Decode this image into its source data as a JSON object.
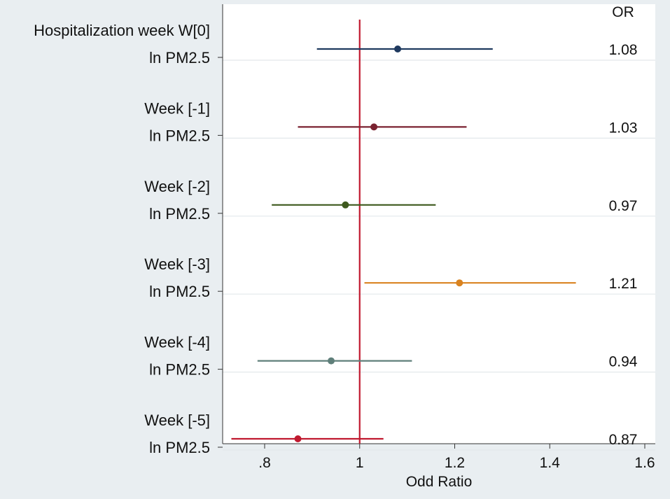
{
  "chart_data": {
    "type": "forest",
    "xlabel": "Odd Ratio",
    "xlim": [
      0.7,
      1.6
    ],
    "xticks": [
      {
        "value": 0.8,
        "label": ".8"
      },
      {
        "value": 1.0,
        "label": "1"
      },
      {
        "value": 1.2,
        "label": "1.2"
      },
      {
        "value": 1.4,
        "label": "1.4"
      },
      {
        "value": 1.6,
        "label": "1.6"
      }
    ],
    "reference_line": 1.0,
    "reference_color": "#c0192f",
    "or_header": "OR",
    "rows": [
      {
        "group": "Hospitalization week W[0]",
        "label": "ln PM2.5",
        "or": 1.08,
        "lo": 0.91,
        "hi": 1.28,
        "or_label": "1.08",
        "color": "#1f3a5f"
      },
      {
        "group": "Week [-1]",
        "label": "ln PM2.5",
        "or": 1.03,
        "lo": 0.87,
        "hi": 1.225,
        "or_label": "1.03",
        "color": "#7a2230"
      },
      {
        "group": "Week [-2]",
        "label": "ln PM2.5",
        "or": 0.97,
        "lo": 0.815,
        "hi": 1.16,
        "or_label": "0.97",
        "color": "#3e5a1e"
      },
      {
        "group": "Week [-3]",
        "label": "ln PM2.5",
        "or": 1.21,
        "lo": 1.01,
        "hi": 1.455,
        "or_label": "1.21",
        "color": "#d98320"
      },
      {
        "group": "Week [-4]",
        "label": "ln PM2.5",
        "or": 0.94,
        "lo": 0.785,
        "hi": 1.11,
        "or_label": "0.94",
        "color": "#5f7f7a"
      },
      {
        "group": "Week [-5]",
        "label": "ln PM2.5",
        "or": 0.87,
        "lo": 0.73,
        "hi": 1.05,
        "or_label": "0.87",
        "color": "#c0192f"
      }
    ]
  }
}
